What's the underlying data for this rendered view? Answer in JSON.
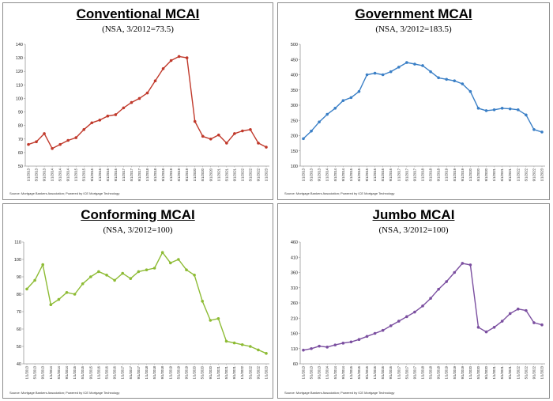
{
  "source_note": "Source: Mortgage Bankers Association; Powered by ICE Mortgage Technology",
  "x_tick_labels": [
    "1/1/2013",
    "5/1/2013",
    "9/1/2013",
    "1/1/2014",
    "5/1/2014",
    "9/1/2014",
    "1/1/2015",
    "5/1/2015",
    "9/1/2015",
    "1/1/2016",
    "5/1/2016",
    "9/1/2016",
    "1/1/2017",
    "5/1/2017",
    "9/1/2017",
    "1/1/2018",
    "5/1/2018",
    "9/1/2018",
    "1/1/2019",
    "5/1/2019",
    "9/1/2019",
    "1/1/2020",
    "5/1/2020",
    "9/1/2020",
    "1/1/2021",
    "5/1/2021",
    "9/1/2021",
    "1/1/2022",
    "5/1/2022",
    "9/1/2022",
    "1/1/2023"
  ],
  "chart_data": [
    {
      "type": "line",
      "title": "Conventional MCAI",
      "subtitle": "(NSA, 3/2012=73.5)",
      "color": "#c0392b",
      "ylim": [
        50,
        140
      ],
      "ystep": 10,
      "x": [
        "1/1/2013",
        "5/1/2013",
        "9/1/2013",
        "1/1/2014",
        "5/1/2014",
        "9/1/2014",
        "1/1/2015",
        "5/1/2015",
        "9/1/2015",
        "1/1/2016",
        "5/1/2016",
        "9/1/2016",
        "1/1/2017",
        "5/1/2017",
        "9/1/2017",
        "1/1/2018",
        "5/1/2018",
        "9/1/2018",
        "1/1/2019",
        "5/1/2019",
        "9/1/2019",
        "1/1/2020",
        "5/1/2020",
        "9/1/2020",
        "1/1/2021",
        "5/1/2021",
        "9/1/2021",
        "1/1/2022",
        "5/1/2022",
        "9/1/2022",
        "1/1/2023"
      ],
      "values": [
        66,
        68,
        74,
        63,
        66,
        69,
        71,
        77,
        82,
        84,
        87,
        88,
        93,
        97,
        100,
        104,
        113,
        122,
        128,
        131,
        130,
        83,
        72,
        70,
        73,
        67,
        74,
        76,
        77,
        67,
        64
      ]
    },
    {
      "type": "line",
      "title": "Government MCAI",
      "subtitle": "(NSA, 3/2012=183.5)",
      "color": "#3a7fc6",
      "ylim": [
        100,
        500
      ],
      "ystep": 50,
      "x": [
        "1/1/2013",
        "5/1/2013",
        "9/1/2013",
        "1/1/2014",
        "5/1/2014",
        "9/1/2014",
        "1/1/2015",
        "5/1/2015",
        "9/1/2015",
        "1/1/2016",
        "5/1/2016",
        "9/1/2016",
        "1/1/2017",
        "5/1/2017",
        "9/1/2017",
        "1/1/2018",
        "5/1/2018",
        "9/1/2018",
        "1/1/2019",
        "5/1/2019",
        "9/1/2019",
        "1/1/2020",
        "5/1/2020",
        "9/1/2020",
        "1/1/2021",
        "5/1/2021",
        "9/1/2021",
        "1/1/2022",
        "5/1/2022",
        "9/1/2022",
        "1/1/2023"
      ],
      "values": [
        190,
        215,
        245,
        270,
        290,
        315,
        325,
        345,
        400,
        405,
        400,
        410,
        425,
        440,
        435,
        430,
        410,
        390,
        385,
        380,
        370,
        345,
        290,
        282,
        285,
        290,
        288,
        285,
        268,
        220,
        212
      ]
    },
    {
      "type": "line",
      "title": "Conforming MCAI",
      "subtitle": "(NSA, 3/2012=100)",
      "color": "#8dbb34",
      "ylim": [
        40,
        110
      ],
      "ystep": 10,
      "x": [
        "1/1/2013",
        "5/1/2013",
        "9/1/2013",
        "1/1/2014",
        "5/1/2014",
        "9/1/2014",
        "1/1/2015",
        "5/1/2015",
        "9/1/2015",
        "1/1/2016",
        "5/1/2016",
        "9/1/2016",
        "1/1/2017",
        "5/1/2017",
        "9/1/2017",
        "1/1/2018",
        "5/1/2018",
        "9/1/2018",
        "1/1/2019",
        "5/1/2019",
        "9/1/2019",
        "1/1/2020",
        "5/1/2020",
        "9/1/2020",
        "1/1/2021",
        "5/1/2021",
        "9/1/2021",
        "1/1/2022",
        "5/1/2022",
        "9/1/2022",
        "1/1/2023"
      ],
      "values": [
        83,
        88,
        97,
        74,
        77,
        81,
        80,
        86,
        90,
        93,
        91,
        88,
        92,
        89,
        93,
        94,
        95,
        104,
        98,
        100,
        94,
        91,
        76,
        65,
        66,
        53,
        52,
        51,
        50,
        48,
        46
      ]
    },
    {
      "type": "line",
      "title": "Jumbo MCAI",
      "subtitle": "(NSA, 3/2012=100)",
      "color": "#7b4fa0",
      "ylim": [
        60,
        460
      ],
      "ystep": 50,
      "x": [
        "1/1/2013",
        "5/1/2013",
        "9/1/2013",
        "1/1/2014",
        "5/1/2014",
        "9/1/2014",
        "1/1/2015",
        "5/1/2015",
        "9/1/2015",
        "1/1/2016",
        "5/1/2016",
        "9/1/2016",
        "1/1/2017",
        "5/1/2017",
        "9/1/2017",
        "1/1/2018",
        "5/1/2018",
        "9/1/2018",
        "1/1/2019",
        "5/1/2019",
        "9/1/2019",
        "1/1/2020",
        "5/1/2020",
        "9/1/2020",
        "1/1/2021",
        "5/1/2021",
        "9/1/2021",
        "1/1/2022",
        "5/1/2022",
        "9/1/2022",
        "1/1/2023"
      ],
      "values": [
        105,
        110,
        118,
        115,
        122,
        128,
        132,
        140,
        150,
        160,
        170,
        185,
        200,
        215,
        230,
        250,
        275,
        305,
        330,
        360,
        390,
        385,
        180,
        165,
        180,
        200,
        225,
        240,
        235,
        195,
        188
      ]
    }
  ]
}
